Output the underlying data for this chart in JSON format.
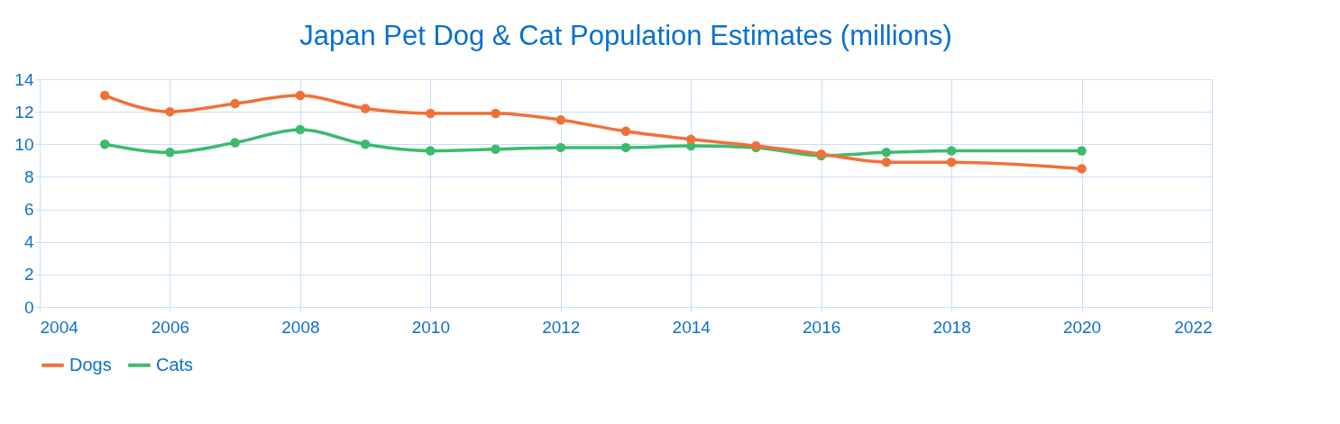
{
  "chart_data": {
    "type": "line",
    "title": "Japan Pet Dog & Cat Population Estimates (millions)",
    "x": [
      2005,
      2006,
      2007,
      2008,
      2009,
      2010,
      2011,
      2012,
      2013,
      2014,
      2015,
      2016,
      2017,
      2018,
      2020
    ],
    "series": [
      {
        "name": "Dogs",
        "color": "#f07138",
        "values": [
          13.0,
          12.0,
          12.5,
          13.0,
          12.2,
          11.9,
          11.9,
          11.5,
          10.8,
          10.3,
          9.9,
          9.4,
          8.9,
          8.9,
          8.5
        ]
      },
      {
        "name": "Cats",
        "color": "#3dba6e",
        "values": [
          10.0,
          9.5,
          10.1,
          10.9,
          10.0,
          9.6,
          9.7,
          9.8,
          9.8,
          9.9,
          9.8,
          9.3,
          9.5,
          9.6,
          9.6
        ]
      }
    ],
    "xlim": [
      2004,
      2022
    ],
    "xticks": [
      2004,
      2006,
      2008,
      2010,
      2012,
      2014,
      2016,
      2018,
      2020,
      2022
    ],
    "ylim": [
      0,
      14
    ],
    "yticks": [
      0,
      2,
      4,
      6,
      8,
      10,
      12,
      14
    ],
    "grid": true,
    "legend": "bottom",
    "marker": "circle",
    "line_style": "solid"
  }
}
